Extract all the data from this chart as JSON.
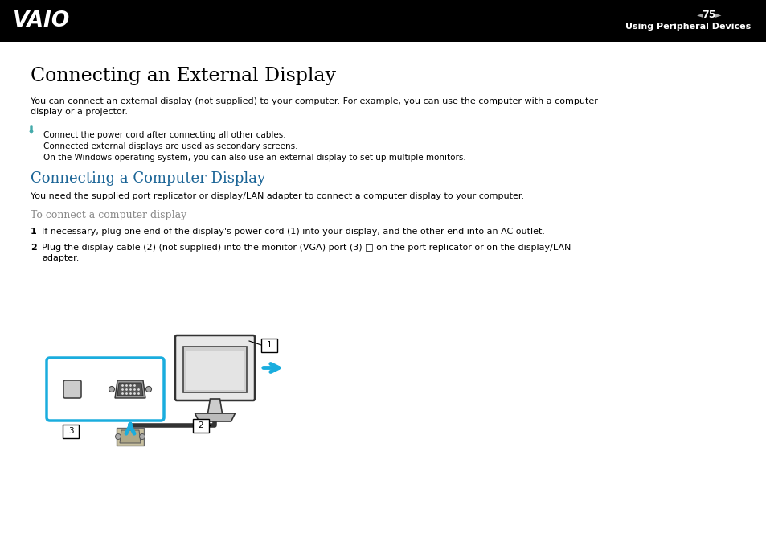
{
  "bg_color": "#ffffff",
  "header_bg": "#000000",
  "header_text_color": "#ffffff",
  "header_page": "75",
  "header_subtitle": "Using Peripheral Devices",
  "title1": "Connecting an External Display",
  "title1_color": "#000000",
  "body1_line1": "You can connect an external display (not supplied) to your computer. For example, you can use the computer with a computer",
  "body1_line2": "display or a projector.",
  "note1": "Connect the power cord after connecting all other cables.",
  "note2": "Connected external displays are used as secondary screens.",
  "note3": "On the Windows operating system, you can also use an external display to set up multiple monitors.",
  "title2": "Connecting a Computer Display",
  "title2_color": "#1a6496",
  "body2": "You need the supplied port replicator or display/LAN adapter to connect a computer display to your computer.",
  "subtitle2": "To connect a computer display",
  "subtitle2_color": "#888888",
  "step1": "If necessary, plug one end of the display's power cord (1) into your display, and the other end into an AC outlet.",
  "step2_line1": "Plug the display cable (2) (not supplied) into the monitor (VGA) port (3) □ on the port replicator or on the display/LAN",
  "step2_line2": "adapter.",
  "arrow_color": "#1aadde",
  "box_border_color": "#1aadde"
}
